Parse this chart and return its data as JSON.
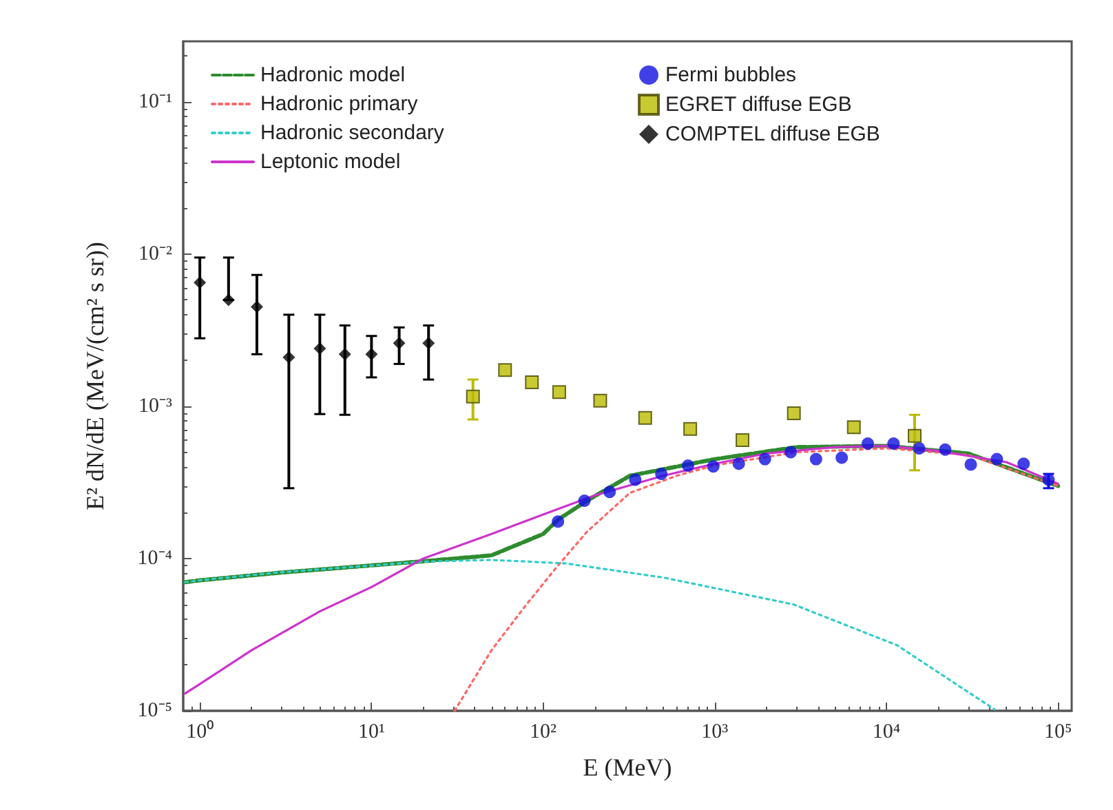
{
  "chart_data": {
    "type": "scatter",
    "xlabel": "E (MeV)",
    "ylabel": "E² dN/dE (MeV/(cm² s sr))",
    "log": "xy",
    "grid": false,
    "legend": "top",
    "xlim": [
      0.8,
      120000
    ],
    "ylim": [
      1e-05,
      0.25
    ],
    "xticks": [
      {
        "value": 1,
        "label": "10⁰"
      },
      {
        "value": 10,
        "label": "10¹"
      },
      {
        "value": 100,
        "label": "10²"
      },
      {
        "value": 1000,
        "label": "10³"
      },
      {
        "value": 10000,
        "label": "10⁴"
      },
      {
        "value": 100000,
        "label": "10⁵"
      }
    ],
    "yticks": [
      {
        "value": 1e-05,
        "label": "10⁻⁵"
      },
      {
        "value": 0.0001,
        "label": "10⁻⁴"
      },
      {
        "value": 0.001,
        "label": "10⁻³"
      },
      {
        "value": 0.01,
        "label": "10⁻²"
      },
      {
        "value": 0.1,
        "label": "10⁻¹"
      }
    ],
    "series": [
      {
        "name": "Hadronic model",
        "type": "line",
        "line_style": "dashed",
        "marker": "none",
        "color": "#2e8b2e",
        "x": [
          0.82,
          1,
          3,
          20,
          50,
          100,
          122,
          180,
          320,
          1000,
          3000,
          10000,
          30000,
          100000
        ],
        "values": [
          7e-05,
          7.2e-05,
          8.1e-05,
          9.6e-05,
          0.000105,
          0.000145,
          0.00018,
          0.00024,
          0.00035,
          0.00045,
          0.00054,
          0.00055,
          0.00049,
          0.0003
        ]
      },
      {
        "name": "Hadronic primary",
        "type": "line",
        "line_style": "dotted",
        "marker": "none",
        "color": "#ff6666",
        "x": [
          30.5,
          50,
          80,
          122,
          180,
          320,
          600,
          1000,
          3000,
          10000,
          30000,
          100000
        ],
        "values": [
          1e-05,
          2.5e-05,
          5e-05,
          9e-05,
          0.00015,
          0.00027,
          0.00035,
          0.00041,
          0.0005,
          0.00053,
          0.00048,
          0.0003
        ]
      },
      {
        "name": "Hadronic secondary",
        "type": "line",
        "line_style": "dotted",
        "marker": "none",
        "color": "#33cccc",
        "x": [
          0.82,
          1,
          2.84,
          20,
          50,
          135,
          505,
          2870,
          11500,
          42700
        ],
        "values": [
          7e-05,
          7.2e-05,
          8.1e-05,
          9.55e-05,
          9.8e-05,
          9.3e-05,
          7.5e-05,
          5e-05,
          2.7e-05,
          1.02e-05
        ]
      },
      {
        "name": "Leptonic model",
        "type": "line",
        "line_style": "solid",
        "marker": "none",
        "color": "#cc33cc",
        "x": [
          0.82,
          1,
          2,
          5,
          10,
          20,
          50,
          100,
          200,
          500,
          1000,
          2000,
          5000,
          10000,
          20000,
          50000,
          100000
        ],
        "values": [
          1.3e-05,
          1.5e-05,
          2.5e-05,
          4.5e-05,
          6.5e-05,
          0.0001,
          0.000145,
          0.000195,
          0.00026,
          0.00035,
          0.00042,
          0.00049,
          0.00054,
          0.00055,
          0.00051,
          0.00043,
          0.00031
        ]
      },
      {
        "name": "Fermi bubbles",
        "marker": "circle",
        "color": "#1010e0",
        "x": [
          122,
          174,
          244,
          344,
          488,
          698,
          980,
          1380,
          1960,
          2770,
          3890,
          5490,
          7790,
          11000,
          15500,
          22000,
          31000,
          44000,
          63000,
          88000
        ],
        "values": [
          0.000175,
          0.00024,
          0.000274,
          0.00033,
          0.00036,
          0.000408,
          0.000403,
          0.00042,
          0.00045,
          0.0005,
          0.00045,
          0.00046,
          0.00057,
          0.00057,
          0.00053,
          0.00052,
          0.000415,
          0.00045,
          0.00042,
          0.00033
        ],
        "errors": [
          null,
          null,
          null,
          null,
          null,
          null,
          null,
          null,
          null,
          null,
          null,
          null,
          null,
          null,
          null,
          null,
          null,
          null,
          null,
          [
            0.00029,
            0.00036
          ]
        ]
      },
      {
        "name": "EGRET diffuse EGB",
        "marker": "square",
        "color": "#bbbb00",
        "x": [
          39,
          60,
          86,
          124,
          215,
          393,
          719,
          1450,
          2890,
          6460,
          14600
        ],
        "values": [
          0.00116,
          0.00173,
          0.00144,
          0.00124,
          0.00109,
          0.00084,
          0.00071,
          0.0006,
          0.0009,
          0.00073,
          0.00064
        ],
        "errors": [
          [
            0.00082,
            0.0015
          ],
          null,
          null,
          null,
          null,
          null,
          null,
          null,
          null,
          null,
          [
            0.00038,
            0.00088
          ]
        ]
      },
      {
        "name": "COMPTEL diffuse EGB",
        "marker": "diamond",
        "color": "#000000",
        "x": [
          1,
          1.47,
          2.15,
          3.3,
          5,
          7,
          10,
          14.5,
          21.5
        ],
        "values": [
          0.0065,
          0.005,
          0.0045,
          0.0021,
          0.0024,
          0.0022,
          0.0022,
          0.0026,
          0.0026
        ],
        "errors": [
          [
            0.0028,
            0.0095
          ],
          [
            0.005,
            0.0095
          ],
          [
            0.0022,
            0.0073
          ],
          [
            0.00029,
            0.004
          ],
          [
            0.00089,
            0.004
          ],
          [
            0.00088,
            0.0034
          ],
          [
            0.00155,
            0.0029
          ],
          [
            0.0019,
            0.0033
          ],
          [
            0.0015,
            0.0034
          ]
        ]
      }
    ]
  }
}
